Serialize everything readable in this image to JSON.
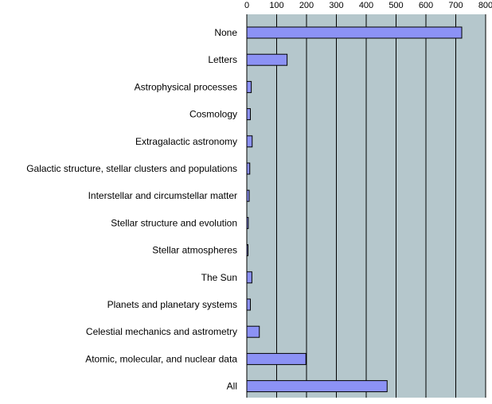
{
  "chart_data": {
    "type": "bar",
    "orientation": "horizontal",
    "categories": [
      "None",
      "Letters",
      "Astrophysical processes",
      "Cosmology",
      "Extragalactic astronomy",
      "Galactic structure, stellar clusters and populations",
      "Interstellar and circumstellar matter",
      "Stellar structure and evolution",
      "Stellar atmospheres",
      "The Sun",
      "Planets and planetary systems",
      "Celestial mechanics and astrometry",
      "Atomic, molecular, and nuclear data",
      "All"
    ],
    "values": [
      720,
      135,
      15,
      12,
      18,
      10,
      8,
      5,
      4,
      17,
      12,
      42,
      198,
      470
    ],
    "xlim": [
      0,
      800
    ],
    "xticks": [
      "0",
      "100",
      "200",
      "300",
      "400",
      "500",
      "600",
      "700",
      "800"
    ],
    "xtick_values": [
      0,
      100,
      200,
      300,
      400,
      500,
      600,
      700,
      800
    ],
    "x_axis_position": "top",
    "grid": true,
    "title": "",
    "xlabel": "",
    "ylabel": ""
  },
  "colors": {
    "plot_background": "#b5c7cc",
    "bar_fill": "#8c92f5",
    "bar_stroke": "#000000",
    "grid": "#000000"
  }
}
